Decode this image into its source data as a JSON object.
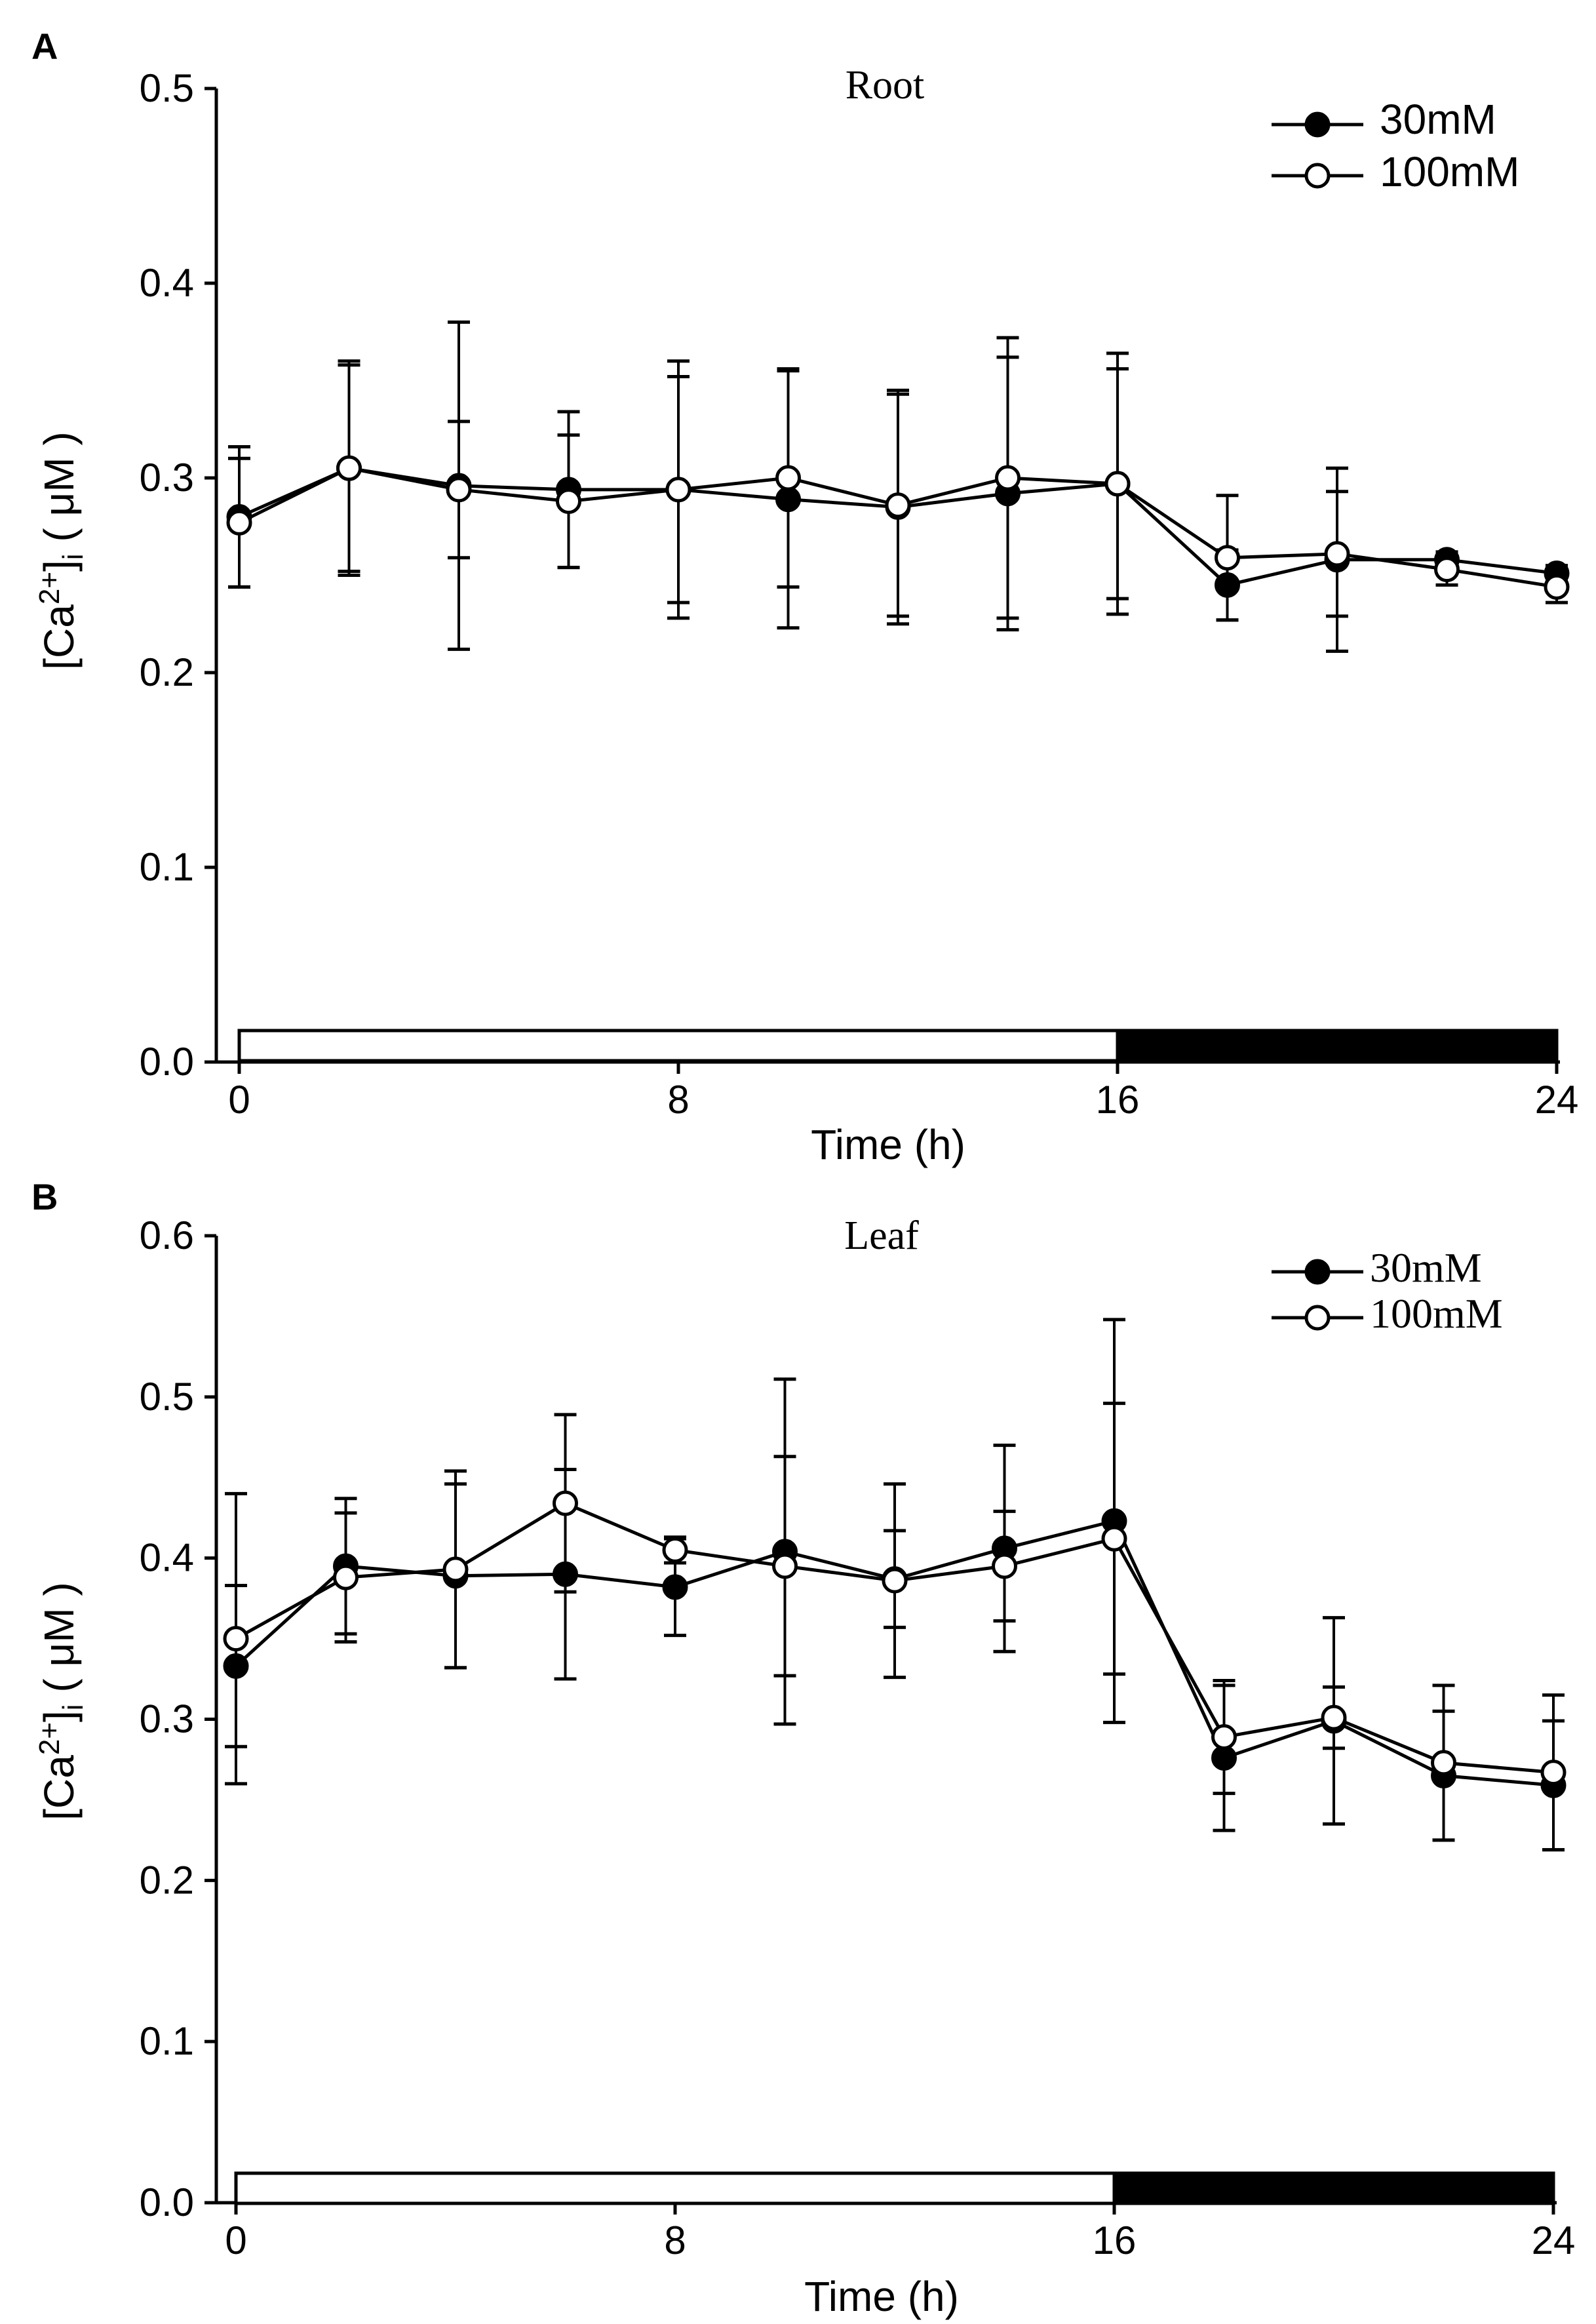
{
  "chart_data": [
    {
      "panel": "A",
      "type": "line",
      "title": "Root",
      "xlabel": "Time (h)",
      "ylabel": "[Ca2+]i ( μM )",
      "ylabel_parts": {
        "main": "[Ca",
        "sup": "2+",
        "close": "]",
        "sub": "i",
        "unit": " ( μM )"
      },
      "xlim": [
        0,
        24
      ],
      "ylim": [
        0,
        0.5
      ],
      "xticks": [
        0,
        8,
        16,
        24
      ],
      "yticks": [
        "0.0",
        "0.1",
        "0.2",
        "0.3",
        "0.4",
        "0.5"
      ],
      "legend_position": "top-right",
      "light_dark_bar": {
        "light": [
          0,
          16
        ],
        "dark": [
          16,
          24
        ]
      },
      "x": [
        0,
        2,
        4,
        6,
        8,
        10,
        12,
        14,
        16,
        18,
        20,
        22,
        24
      ],
      "series": [
        {
          "name": "30mM",
          "marker": "filled-circle",
          "values": [
            0.28,
            0.305,
            0.296,
            0.294,
            0.294,
            0.289,
            0.285,
            0.292,
            0.297,
            0.245,
            0.258,
            0.258,
            0.251
          ],
          "error": [
            0.036,
            0.053,
            0.084,
            0.04,
            0.066,
            0.066,
            0.06,
            0.07,
            0.067,
            0.018,
            0.047,
            0.004,
            0.004
          ]
        },
        {
          "name": "100mM",
          "marker": "open-circle",
          "values": [
            0.277,
            0.305,
            0.294,
            0.288,
            0.294,
            0.3,
            0.286,
            0.3,
            0.297,
            0.259,
            0.261,
            0.253,
            0.244
          ],
          "error": [
            0.033,
            0.055,
            0.035,
            0.034,
            0.058,
            0.056,
            0.057,
            0.072,
            0.059,
            0.032,
            0.032,
            0.008,
            0.008
          ]
        }
      ]
    },
    {
      "panel": "B",
      "type": "line",
      "title": "Leaf",
      "xlabel": "Time (h)",
      "ylabel": "[Ca2+]i ( μM )",
      "ylabel_parts": {
        "main": "[Ca",
        "sup": "2+",
        "close": "]",
        "sub": "i",
        "unit": " ( μM )"
      },
      "xlim": [
        0,
        24
      ],
      "ylim": [
        0,
        0.6
      ],
      "xticks": [
        0,
        8,
        16,
        24
      ],
      "yticks": [
        "0.0",
        "0.1",
        "0.2",
        "0.3",
        "0.4",
        "0.5",
        "0.6"
      ],
      "legend_position": "top-right",
      "light_dark_bar": {
        "light": [
          0,
          16
        ],
        "dark": [
          16,
          24
        ]
      },
      "x": [
        0,
        2,
        4,
        6,
        8,
        10,
        12,
        14,
        16,
        18,
        20,
        22,
        24
      ],
      "series": [
        {
          "name": "30mM",
          "marker": "filled-circle",
          "values": [
            0.333,
            0.395,
            0.389,
            0.39,
            0.382,
            0.404,
            0.387,
            0.406,
            0.423,
            0.276,
            0.299,
            0.265,
            0.259
          ],
          "error": [
            0.05,
            0.042,
            0.057,
            0.065,
            0.03,
            0.107,
            0.03,
            0.064,
            0.125,
            0.045,
            0.064,
            0.04,
            0.04
          ]
        },
        {
          "name": "100mM",
          "marker": "open-circle",
          "values": [
            0.35,
            0.388,
            0.393,
            0.434,
            0.405,
            0.395,
            0.386,
            0.395,
            0.412,
            0.289,
            0.301,
            0.273,
            0.267
          ],
          "error": [
            0.09,
            0.04,
            0.061,
            0.055,
            0.008,
            0.068,
            0.06,
            0.034,
            0.084,
            0.035,
            0.019,
            0.048,
            0.048
          ]
        }
      ]
    }
  ]
}
